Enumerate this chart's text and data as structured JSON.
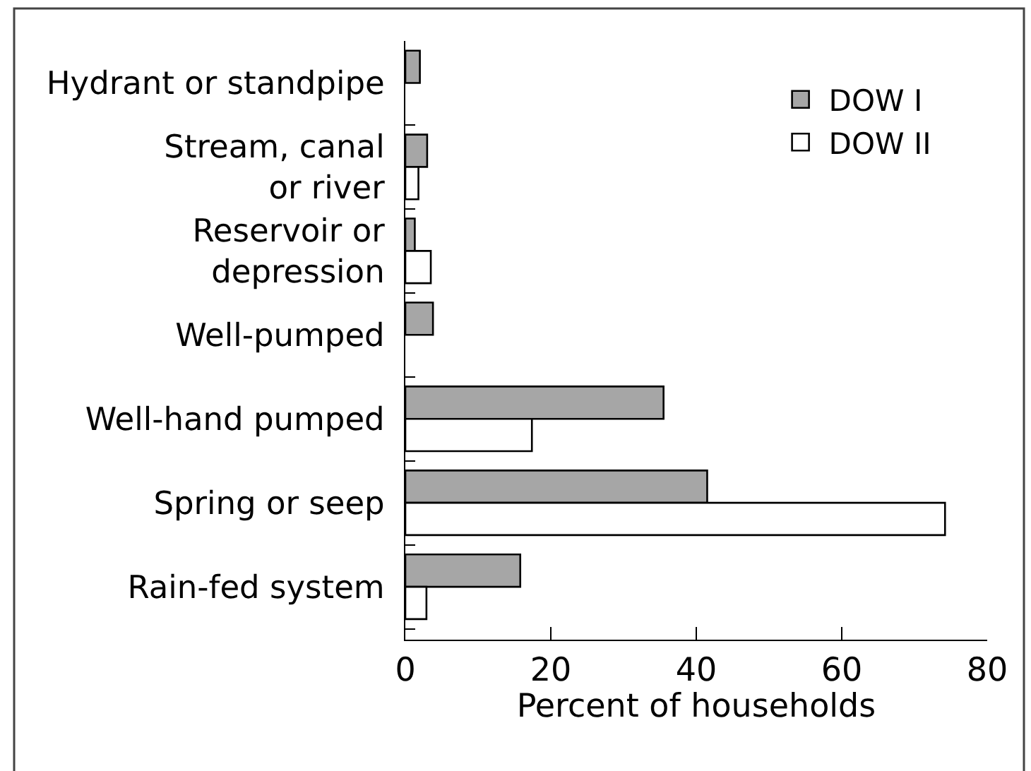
{
  "chart_data": {
    "type": "bar",
    "orientation": "horizontal",
    "xlabel": "Percent of households",
    "categories": [
      "Hydrant or standpipe",
      "Stream, canal\nor river",
      "Reservoir or\ndepression",
      "Well-pumped",
      "Well-hand pumped",
      "Spring or seep",
      "Rain-fed system"
    ],
    "series": [
      {
        "name": "DOW I",
        "color": "#a6a6a6",
        "values": [
          2.0,
          3.0,
          1.3,
          3.8,
          35.5,
          41.5,
          15.8
        ]
      },
      {
        "name": "DOW II",
        "color": "#ffffff",
        "values": [
          null,
          1.8,
          3.5,
          null,
          17.4,
          74.2,
          2.9
        ]
      }
    ],
    "xlim": [
      0,
      80
    ],
    "xticks": [
      0,
      20,
      40,
      60,
      80
    ],
    "legend": "top right"
  }
}
